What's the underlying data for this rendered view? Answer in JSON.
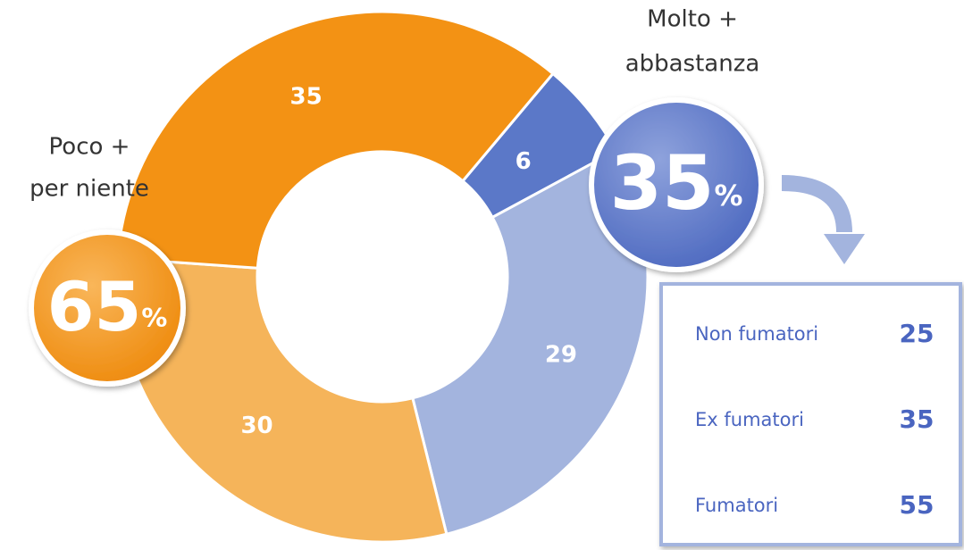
{
  "chart_data": {
    "type": "donut",
    "values": [
      6,
      29,
      30,
      35
    ],
    "colors": [
      "#5b78c8",
      "#a3b4de",
      "#f5b45a",
      "#f39214"
    ],
    "start_angle": 40,
    "unit": "%",
    "groups": [
      {
        "label": [
          "Poco +",
          "per niente"
        ],
        "value": 65,
        "color": "#f39214"
      },
      {
        "label": [
          "Molto +",
          "abbastanza"
        ],
        "value": 35,
        "color": "#5b78c8"
      }
    ],
    "breakdown": {
      "rows": [
        {
          "label": "Non fumatori",
          "value": 25
        },
        {
          "label": "Ex fumatori",
          "value": 35
        },
        {
          "label": "Fumatori",
          "value": 55
        }
      ]
    }
  }
}
